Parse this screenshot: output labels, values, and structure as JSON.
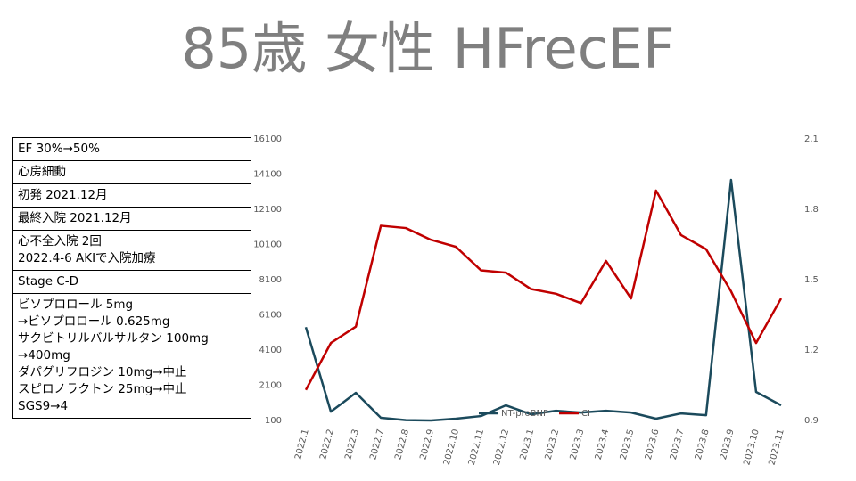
{
  "title": "85歳 女性 HFrecEF",
  "table": {
    "rows": [
      [
        "EF 30%→50%"
      ],
      [
        "心房細動"
      ],
      [
        "初発 2021.12月"
      ],
      [
        "最終入院 2021.12月"
      ],
      [
        "心不全入院 2回",
        "2022.4-6 AKIで入院加療"
      ],
      [
        "Stage C-D"
      ],
      [
        "ビソプロロール 5mg",
        "→ビソプロロール 0.625mg",
        "サクビトリルバルサルタン 100mg",
        "→400mg",
        "ダパグリフロジン 10mg→中止",
        "スピロノラクトン 25mg→中止",
        "SGS9→4"
      ]
    ]
  },
  "chart_data": {
    "type": "line",
    "categories": [
      "2022.1",
      "2022.2",
      "2022.3",
      "2022.7",
      "2022.8",
      "2022.9",
      "2022.10",
      "2022.11",
      "2022.12",
      "2023.1",
      "2023.2",
      "2023.3",
      "2023.4",
      "2023.5",
      "2023.6",
      "2023.7",
      "2023.8",
      "2023.9",
      "2023.10",
      "2023.11"
    ],
    "series": [
      {
        "name": "NT-proBNP",
        "color": "#1b4a5c",
        "values": [
          5400,
          600,
          1670,
          250,
          120,
          100,
          200,
          350,
          960,
          450,
          650,
          550,
          650,
          550,
          200,
          500,
          400,
          13770,
          1720,
          960
        ]
      },
      {
        "name": "CI",
        "color": "#c00000",
        "axis": "y2",
        "values": [
          1.03,
          1.23,
          1.3,
          1.73,
          1.72,
          1.67,
          1.64,
          1.54,
          1.53,
          1.46,
          1.44,
          1.4,
          1.58,
          1.42,
          1.88,
          1.69,
          1.63,
          1.45,
          1.23,
          1.42
        ]
      }
    ],
    "ylim": [
      100,
      16100
    ],
    "yticks": [
      100,
      2100,
      4100,
      6100,
      8100,
      10100,
      12100,
      14100,
      16100
    ],
    "y2lim": [
      0.9,
      2.1
    ],
    "y2ticks": [
      0.9,
      1.2,
      1.5,
      1.8,
      2.1
    ],
    "legend": "bottom"
  }
}
